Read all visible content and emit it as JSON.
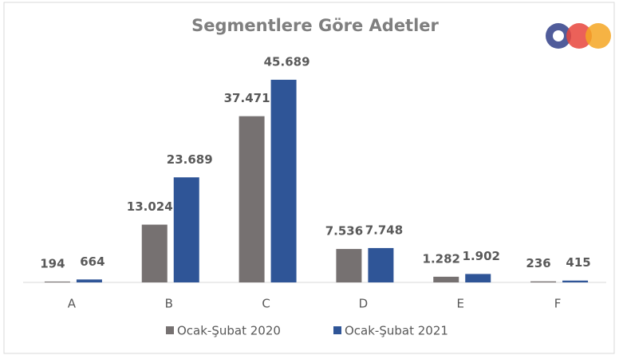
{
  "chart_data": {
    "type": "bar",
    "title": "Segmentlere Göre Adetler",
    "categories": [
      "A",
      "B",
      "C",
      "D",
      "E",
      "F"
    ],
    "series": [
      {
        "name": "Ocak-Şubat 2020",
        "color": "#767171",
        "values": [
          194,
          13024,
          37471,
          7536,
          1282,
          236
        ],
        "value_labels": [
          "194",
          "13.024",
          "37.471",
          "7.536",
          "1.282",
          "236"
        ]
      },
      {
        "name": "Ocak-Şubat 2021",
        "color": "#2f5597",
        "values": [
          664,
          23689,
          45689,
          7748,
          1902,
          415
        ],
        "value_labels": [
          "664",
          "23.689",
          "45.689",
          "7.748",
          "1.902",
          "415"
        ]
      }
    ],
    "ylim": [
      0,
      50000
    ],
    "legend": "bottom"
  }
}
